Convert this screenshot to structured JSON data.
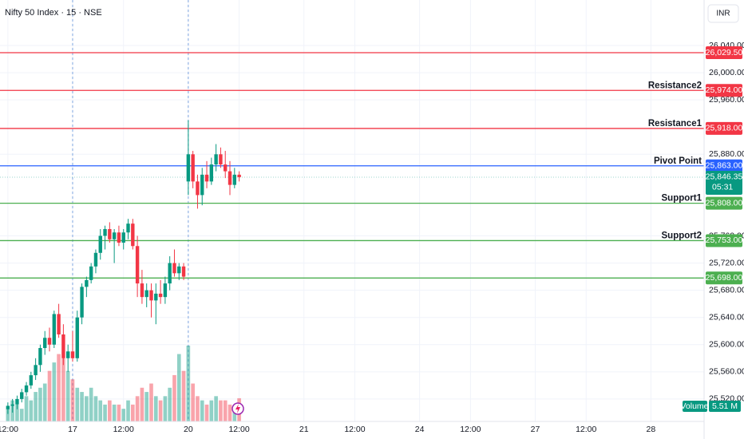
{
  "chart_data": {
    "type": "candlestick",
    "title": "Nifty 50 Index · 15 · NSE",
    "currency": "INR",
    "x": [
      0,
      1,
      2,
      3,
      4,
      5,
      6,
      7,
      8,
      9,
      10,
      11,
      12,
      13,
      14,
      15,
      16,
      17,
      18,
      19,
      20,
      21,
      22,
      23,
      24,
      25,
      26,
      27,
      28,
      29,
      30,
      31,
      32,
      33,
      34,
      35,
      36,
      37,
      38,
      39,
      40,
      41,
      42,
      43,
      44,
      45,
      46,
      47,
      48,
      49,
      50
    ],
    "open": [
      25505,
      25510,
      25512,
      25520,
      25530,
      25540,
      25555,
      25570,
      25595,
      25610,
      25600,
      25645,
      25615,
      25580,
      25590,
      25580,
      25640,
      25685,
      25695,
      25715,
      25735,
      25760,
      25770,
      25755,
      25765,
      25750,
      25765,
      25778,
      25745,
      25690,
      25670,
      25680,
      25665,
      25675,
      25670,
      25690,
      25720,
      25705,
      25715,
      25840,
      25880,
      25840,
      25820,
      25850,
      25840,
      25865,
      25880,
      25865,
      25855,
      25835,
      25850
    ],
    "high": [
      25515,
      25520,
      25525,
      25535,
      25545,
      25560,
      25580,
      25600,
      25620,
      25625,
      25650,
      25660,
      25630,
      25600,
      25620,
      25650,
      25690,
      25700,
      25720,
      25740,
      25770,
      25775,
      25780,
      25770,
      25775,
      25770,
      25785,
      25785,
      25760,
      25710,
      25690,
      25690,
      25690,
      25695,
      25700,
      25730,
      25740,
      25720,
      25720,
      25930,
      25885,
      25850,
      25860,
      25870,
      25875,
      25895,
      25890,
      25885,
      25870,
      25860,
      25855
    ],
    "low": [
      25498,
      25500,
      25505,
      25515,
      25525,
      25535,
      25548,
      25560,
      25585,
      25590,
      25595,
      25610,
      25570,
      25560,
      25575,
      25575,
      25630,
      25670,
      25690,
      25705,
      25725,
      25740,
      25750,
      25720,
      25745,
      25740,
      25755,
      25740,
      25670,
      25660,
      25655,
      25640,
      25630,
      25660,
      25660,
      25680,
      25700,
      25695,
      25695,
      25820,
      25830,
      25800,
      25805,
      25830,
      25835,
      25855,
      25860,
      25845,
      25820,
      25830,
      25840
    ],
    "close": [
      25510,
      25512,
      25520,
      25530,
      25540,
      25555,
      25570,
      25595,
      25610,
      25600,
      25645,
      25615,
      25580,
      25590,
      25580,
      25640,
      25685,
      25695,
      25715,
      25735,
      25760,
      25770,
      25755,
      25765,
      25750,
      25765,
      25778,
      25745,
      25690,
      25670,
      25680,
      25665,
      25675,
      25670,
      25690,
      25720,
      25705,
      25715,
      25700,
      25880,
      25840,
      25820,
      25850,
      25840,
      25865,
      25880,
      25865,
      25855,
      25835,
      25850,
      25846.35
    ],
    "up_color": "#089981",
    "down_color": "#f23645",
    "volume": {
      "name": "Volume",
      "last_label": "5.51 M",
      "values": [
        3,
        5,
        4,
        3,
        6,
        5,
        7,
        8,
        9,
        12,
        14,
        16,
        15,
        12,
        10,
        8,
        7,
        6,
        8,
        6,
        5,
        4,
        5,
        4,
        4,
        3,
        5,
        4,
        6,
        8,
        7,
        9,
        6,
        5,
        6,
        8,
        11,
        16,
        12,
        18,
        9,
        6,
        5,
        4,
        5,
        6,
        5,
        5,
        4,
        3,
        5.51
      ]
    },
    "xlim": [
      -1.7,
      150.5
    ],
    "xticks": [
      {
        "value": 0,
        "label": "12:00"
      },
      {
        "value": 14,
        "label": "17"
      },
      {
        "value": 25,
        "label": "12:00"
      },
      {
        "value": 39,
        "label": "20"
      },
      {
        "value": 50,
        "label": "12:00"
      },
      {
        "value": 64,
        "label": "21"
      },
      {
        "value": 75,
        "label": "12:00"
      },
      {
        "value": 89,
        "label": "24"
      },
      {
        "value": 100,
        "label": "12:00"
      },
      {
        "value": 114,
        "label": "27"
      },
      {
        "value": 125,
        "label": "12:00"
      },
      {
        "value": 139,
        "label": "28"
      }
    ],
    "session_starts": [
      14,
      39
    ],
    "ylim": [
      25487,
      26060
    ],
    "yticks": [
      {
        "value": 25520,
        "label": "25,520.00"
      },
      {
        "value": 25560,
        "label": "25,560.00"
      },
      {
        "value": 25600,
        "label": "25,600.00"
      },
      {
        "value": 25640,
        "label": "25,640.00"
      },
      {
        "value": 25680,
        "label": "25,680.00"
      },
      {
        "value": 25720,
        "label": "25,720.00"
      },
      {
        "value": 25760,
        "label": "25,760.00"
      },
      {
        "value": 25880,
        "label": "25,880.00"
      },
      {
        "value": 25960,
        "label": "25,960.00"
      },
      {
        "value": 26000,
        "label": "26,000.00"
      },
      {
        "value": 26040,
        "label": "26,040.00"
      }
    ],
    "grid": true,
    "levels": [
      {
        "value": 26029.5,
        "label": "26,029.50",
        "color": "#f23645"
      },
      {
        "name": "Resistance2",
        "value": 25974,
        "label": "25,974.00",
        "color": "#f23645"
      },
      {
        "name": "Resistance1",
        "value": 25918,
        "label": "25,918.00",
        "color": "#f23645"
      },
      {
        "name": "Pivot Point",
        "value": 25863,
        "label": "25,863.00",
        "color": "#2962ff"
      },
      {
        "name": "Support1",
        "value": 25808,
        "label": "25,808.00",
        "color": "#4caf50"
      },
      {
        "name": "Support2",
        "value": 25753,
        "label": "25,753.00",
        "color": "#4caf50"
      },
      {
        "value": 25698,
        "label": "25,698.00",
        "color": "#4caf50"
      }
    ],
    "last_price": {
      "value": 25846.35,
      "label": "25,846.35",
      "countdown": "05:31",
      "color": "#089981"
    }
  }
}
